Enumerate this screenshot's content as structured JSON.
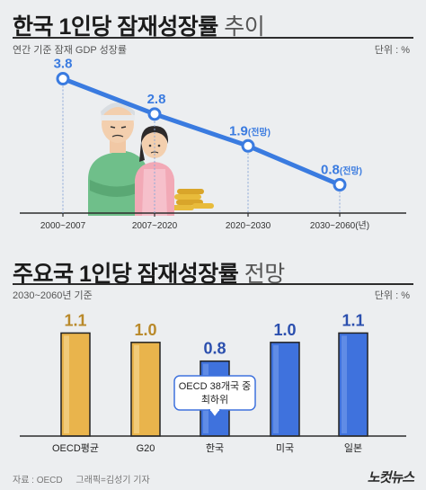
{
  "header1": {
    "title_bold": "한국 1인당 잠재성장률",
    "title_light": "추이",
    "subtitle": "연간 기준 잠재 GDP 성장률",
    "unit": "단위 : %"
  },
  "header2": {
    "title_bold": "주요국 1인당 잠재성장률",
    "title_light": "전망",
    "subtitle": "2030~2060년 기준",
    "unit": "단위 : %"
  },
  "callout": {
    "line1": "OECD 38개국 중",
    "line2": "최하위"
  },
  "footer": {
    "source": "자료 : OECD",
    "credit": "그래픽=김성기 기자",
    "logo": "노컷뉴스"
  },
  "colors": {
    "line": "#3a7be0",
    "gold_bar": "#e9b44c",
    "blue_bar": "#3f72dd",
    "value_gold": "#b9892a",
    "value_blue": "#2b4fae"
  },
  "chart_data": [
    {
      "type": "line",
      "title": "한국 1인당 잠재성장률 추이",
      "subtitle": "연간 기준 잠재 GDP 성장률",
      "categories": [
        "2000~2007",
        "2007~2020",
        "2020~2030",
        "2030~2060(년)"
      ],
      "values": [
        3.8,
        2.8,
        1.9,
        0.8
      ],
      "value_labels": [
        "3.8",
        "2.8",
        "1.9",
        "0.8"
      ],
      "label_suffixes": [
        "",
        "",
        "(전망)",
        "(전망)"
      ],
      "ylim": [
        0,
        4.5
      ],
      "grid": false
    },
    {
      "type": "bar",
      "title": "주요국 1인당 잠재성장률 전망",
      "subtitle": "2030~2060년 기준",
      "categories": [
        "OECD평균",
        "G20",
        "한국",
        "미국",
        "일본"
      ],
      "values": [
        1.1,
        1.0,
        0.8,
        1.0,
        1.1
      ],
      "value_labels": [
        "1.1",
        "1.0",
        "0.8",
        "1.0",
        "1.1"
      ],
      "bar_colors": [
        "gold",
        "gold",
        "blue",
        "blue",
        "blue"
      ],
      "ylim": [
        0,
        1.2
      ],
      "grid": false
    }
  ]
}
